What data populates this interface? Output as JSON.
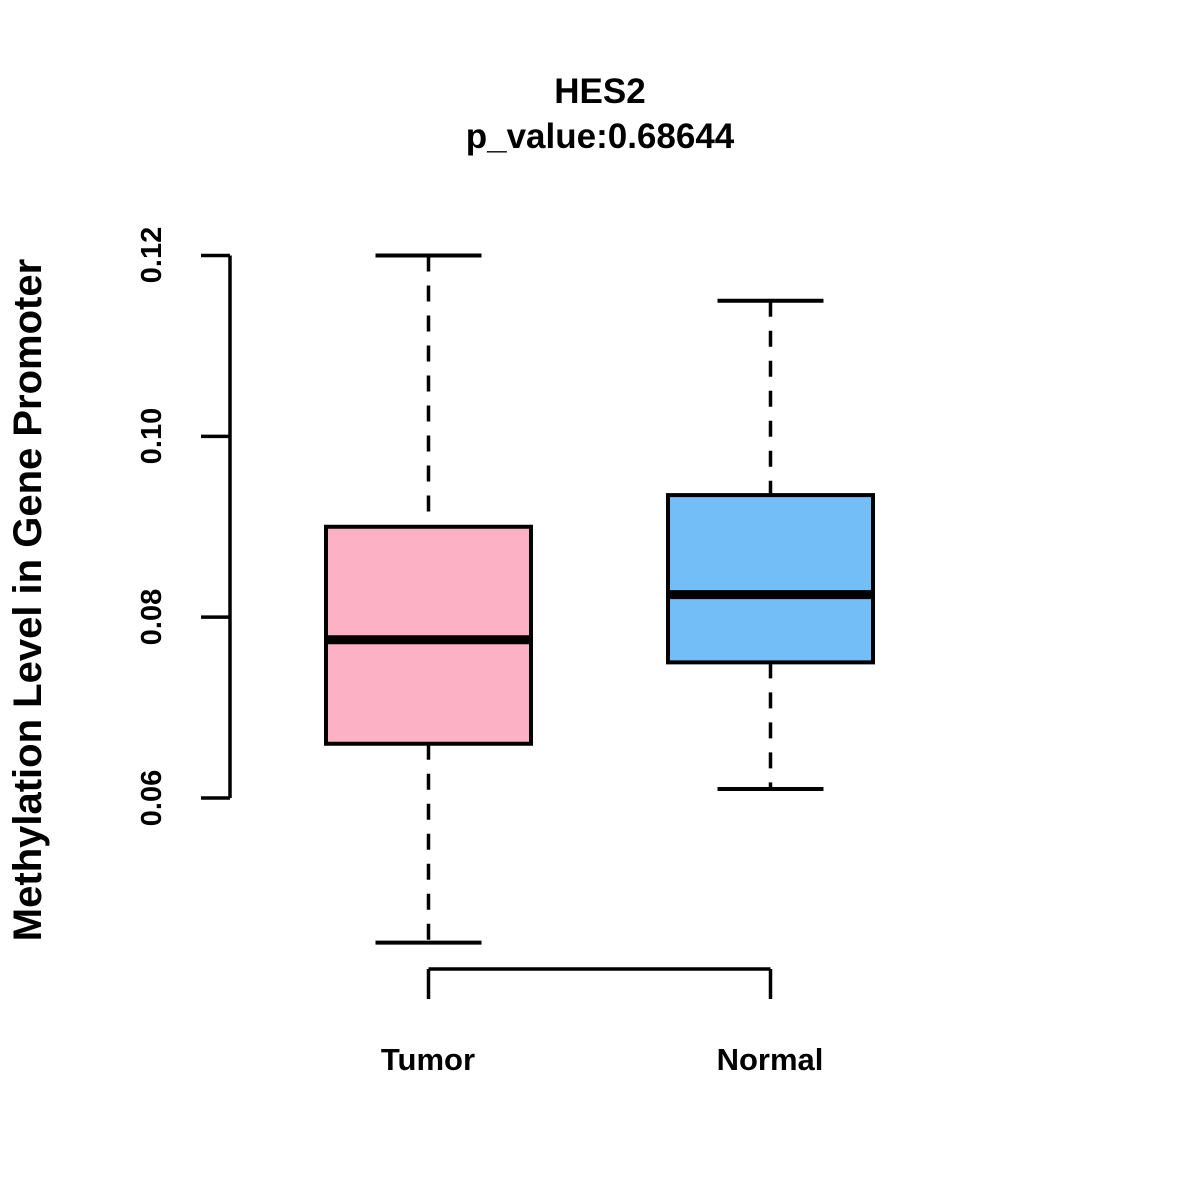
{
  "title": "HES2",
  "subtitle": "p_value:0.68644",
  "y_axis": {
    "label": "Methylation Level in Gene Promoter",
    "tick_labels": [
      "0.06",
      "0.08",
      "0.10",
      "0.12"
    ],
    "range": [
      0.06,
      0.12
    ]
  },
  "colors": {
    "tumor_fill": "#FCB1C4",
    "normal_fill": "#74BEF7",
    "line": "#000000"
  },
  "chart_data": {
    "type": "boxplot",
    "title": "HES2",
    "subtitle": "p_value:0.68644",
    "ylabel": "Methylation Level in Gene Promoter",
    "xlabel": "",
    "ylim": [
      0.06,
      0.12
    ],
    "yticks": [
      0.06,
      0.08,
      0.1,
      0.12
    ],
    "grid": false,
    "categories": [
      "Tumor",
      "Normal"
    ],
    "groups": [
      {
        "label": "Tumor",
        "fill_color": "#FCB1C4",
        "whisker_low": 0.044,
        "q1": 0.066,
        "median": 0.0775,
        "q3": 0.09,
        "whisker_high": 0.12
      },
      {
        "label": "Normal",
        "fill_color": "#74BEF7",
        "whisker_low": 0.061,
        "q1": 0.075,
        "median": 0.0825,
        "q3": 0.0935,
        "whisker_high": 0.115
      }
    ]
  }
}
